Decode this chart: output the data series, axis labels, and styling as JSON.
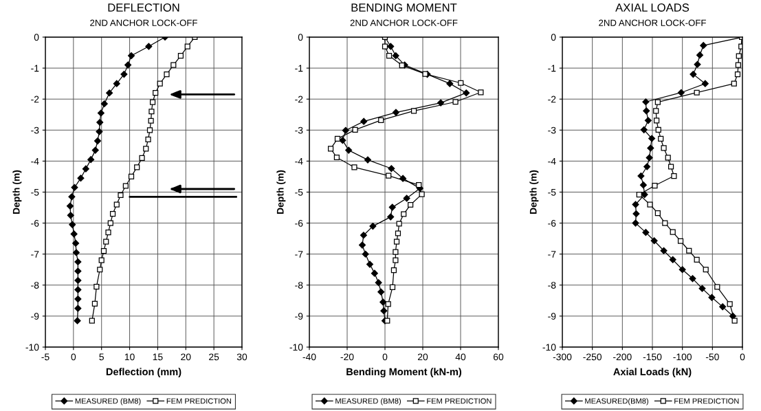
{
  "chart_data": [
    {
      "type": "line",
      "title": "DEFLECTION",
      "subtitle": "2ND ANCHOR LOCK-OFF",
      "xlabel": "Deflection (mm)",
      "ylabel": "Depth (m)",
      "xlim": [
        -5,
        30
      ],
      "xticks": [
        -5,
        0,
        5,
        10,
        15,
        20,
        25,
        30
      ],
      "ylim": [
        -10,
        0
      ],
      "yticks": [
        -10,
        -9,
        -8,
        -7,
        -6,
        -5,
        -4,
        -3,
        -2,
        -1,
        0
      ],
      "grid": true,
      "legend": "bottom",
      "ref_lines": [
        {
          "axis": "y",
          "value": -5.15,
          "color": "#000000"
        }
      ],
      "series": [
        {
          "name": "MEASURED (BM8)",
          "color": "#000000",
          "marker": "diamond",
          "x": [
            16.3,
            13.4,
            10.3,
            9.7,
            9.0,
            7.7,
            6.4,
            5.5,
            4.9,
            4.7,
            4.6,
            4.3,
            3.9,
            3.1,
            2.2,
            1.3,
            0.2,
            -0.3,
            -0.6,
            -0.5,
            -0.2,
            0.1,
            0.4,
            0.5,
            0.8,
            0.8,
            0.8,
            0.8,
            0.8,
            0.8,
            0.7
          ],
          "values": [
            0,
            -0.3,
            -0.6,
            -0.9,
            -1.2,
            -1.5,
            -1.8,
            -2.15,
            -2.45,
            -2.75,
            -3.05,
            -3.35,
            -3.65,
            -3.95,
            -4.25,
            -4.55,
            -4.85,
            -5.15,
            -5.45,
            -5.75,
            -6.05,
            -6.35,
            -6.65,
            -6.95,
            -7.25,
            -7.55,
            -7.85,
            -8.15,
            -8.45,
            -8.75,
            -9.15
          ]
        },
        {
          "name": "FEM PREDICTION",
          "color": "#000000",
          "marker": "square",
          "x": [
            21.6,
            20.3,
            19.1,
            17.8,
            16.6,
            15.4,
            14.6,
            14.1,
            13.9,
            13.8,
            13.6,
            13.3,
            12.9,
            12.2,
            11.3,
            10.3,
            9.3,
            8.4,
            7.7,
            7.0,
            6.6,
            6.2,
            5.8,
            5.4,
            5.0,
            4.7,
            4.1,
            3.8,
            3.3
          ],
          "values": [
            0,
            -0.3,
            -0.6,
            -0.9,
            -1.2,
            -1.5,
            -1.8,
            -2.1,
            -2.4,
            -2.7,
            -3.0,
            -3.3,
            -3.6,
            -3.9,
            -4.2,
            -4.5,
            -4.8,
            -5.1,
            -5.4,
            -5.7,
            -6.0,
            -6.3,
            -6.6,
            -6.9,
            -7.2,
            -7.5,
            -8.05,
            -8.6,
            -9.15
          ]
        }
      ]
    },
    {
      "type": "line",
      "title": "BENDING MOMENT",
      "subtitle": "2ND ANCHOR LOCK-OFF",
      "xlabel": "Bending Moment (kN-m)",
      "ylabel": "Depth (m)",
      "xlim": [
        -40,
        60
      ],
      "xticks": [
        -40,
        -20,
        0,
        20,
        40,
        60
      ],
      "ylim": [
        -10,
        0
      ],
      "yticks": [
        -10,
        -9,
        -8,
        -7,
        -6,
        -5,
        -4,
        -3,
        -2,
        -1,
        0
      ],
      "grid": true,
      "legend": "bottom",
      "series": [
        {
          "name": "MEASURED (BM8)",
          "color": "#000000",
          "marker": "diamond",
          "x": [
            0,
            3.0,
            5.7,
            10.4,
            22.4,
            34.3,
            43.0,
            29.5,
            5.8,
            -11.2,
            -20.8,
            -22.4,
            -19.2,
            -9.1,
            3.4,
            9.5,
            18.5,
            11.5,
            3.9,
            3.0,
            -6.4,
            -11.3,
            -12.0,
            -10.3,
            -8.0,
            -5.5,
            -3.4,
            -2.1,
            -1.0,
            -0.6,
            0
          ],
          "values": [
            0,
            -0.3,
            -0.6,
            -0.9,
            -1.2,
            -1.5,
            -1.8,
            -2.12,
            -2.43,
            -2.72,
            -3.01,
            -3.33,
            -3.65,
            -3.96,
            -4.24,
            -4.56,
            -4.88,
            -5.2,
            -5.49,
            -5.8,
            -6.1,
            -6.39,
            -6.71,
            -7.0,
            -7.33,
            -7.62,
            -7.92,
            -8.22,
            -8.55,
            -8.83,
            -9.15
          ]
        },
        {
          "name": "FEM PREDICTION",
          "color": "#000000",
          "marker": "square",
          "x": [
            0,
            0,
            2.2,
            9.0,
            21.3,
            40.1,
            50.7,
            37.3,
            15.3,
            -2.1,
            -15.8,
            -25.1,
            -28.7,
            -25.5,
            -16.2,
            1.9,
            17.9,
            19.5,
            13.5,
            9.9,
            7.5,
            6.9,
            6.2,
            5.6,
            5.6,
            4.7,
            4.0,
            1.7,
            1.2
          ],
          "values": [
            0,
            -0.3,
            -0.6,
            -0.91,
            -1.19,
            -1.48,
            -1.78,
            -2.09,
            -2.38,
            -2.68,
            -2.99,
            -3.28,
            -3.6,
            -3.88,
            -4.2,
            -4.47,
            -4.77,
            -5.07,
            -5.41,
            -5.71,
            -6.02,
            -6.33,
            -6.6,
            -6.93,
            -7.2,
            -7.52,
            -8.07,
            -8.61,
            -9.15
          ]
        }
      ]
    },
    {
      "type": "line",
      "title": "AXIAL LOADS",
      "subtitle": "2ND ANCHOR LOCK-OFF",
      "xlabel": "Axial Loads (kN)",
      "ylabel": "Depth (m)",
      "xlim": [
        -300,
        0
      ],
      "xticks": [
        -300,
        -250,
        -200,
        -150,
        -100,
        -50,
        0
      ],
      "ylim": [
        -10,
        0
      ],
      "yticks": [
        -10,
        -9,
        -8,
        -7,
        -6,
        -5,
        -4,
        -3,
        -2,
        -1,
        0
      ],
      "grid": true,
      "legend": "bottom",
      "series": [
        {
          "name": "MEASURED(BM8)",
          "color": "#000000",
          "marker": "diamond",
          "x": [
            0,
            -65,
            -71,
            -75,
            -82,
            -62,
            -102,
            -161,
            -160,
            -157,
            -164,
            -151,
            -153,
            -155,
            -159,
            -169,
            -165,
            -163,
            -178,
            -177,
            -178,
            -161,
            -147,
            -131,
            -116,
            -100,
            -83,
            -67,
            -51,
            -33,
            -16
          ],
          "values": [
            0,
            -0.27,
            -0.58,
            -0.88,
            -1.2,
            -1.5,
            -1.79,
            -2.09,
            -2.38,
            -2.69,
            -2.99,
            -3.27,
            -3.58,
            -3.89,
            -4.18,
            -4.48,
            -4.77,
            -5.08,
            -5.4,
            -5.7,
            -6.0,
            -6.3,
            -6.57,
            -6.89,
            -7.18,
            -7.5,
            -7.79,
            -8.11,
            -8.4,
            -8.7,
            -9.0
          ]
        },
        {
          "name": "FEM PREDICTION",
          "color": "#000000",
          "marker": "square",
          "x": [
            -1,
            -2,
            -6,
            -7,
            -8,
            -14,
            -76,
            -141,
            -144,
            -143,
            -140,
            -136,
            -131,
            -124,
            -119,
            -114,
            -146,
            -172,
            -154,
            -141,
            -129,
            -116,
            -103,
            -89,
            -76,
            -61,
            -42,
            -21,
            -13
          ],
          "values": [
            0,
            -0.3,
            -0.61,
            -0.9,
            -1.2,
            -1.5,
            -1.79,
            -2.1,
            -2.38,
            -2.69,
            -2.99,
            -3.28,
            -3.58,
            -3.89,
            -4.18,
            -4.48,
            -4.79,
            -5.08,
            -5.4,
            -5.68,
            -6.0,
            -6.29,
            -6.58,
            -6.89,
            -7.18,
            -7.5,
            -8.06,
            -8.61,
            -9.15
          ]
        }
      ]
    }
  ]
}
